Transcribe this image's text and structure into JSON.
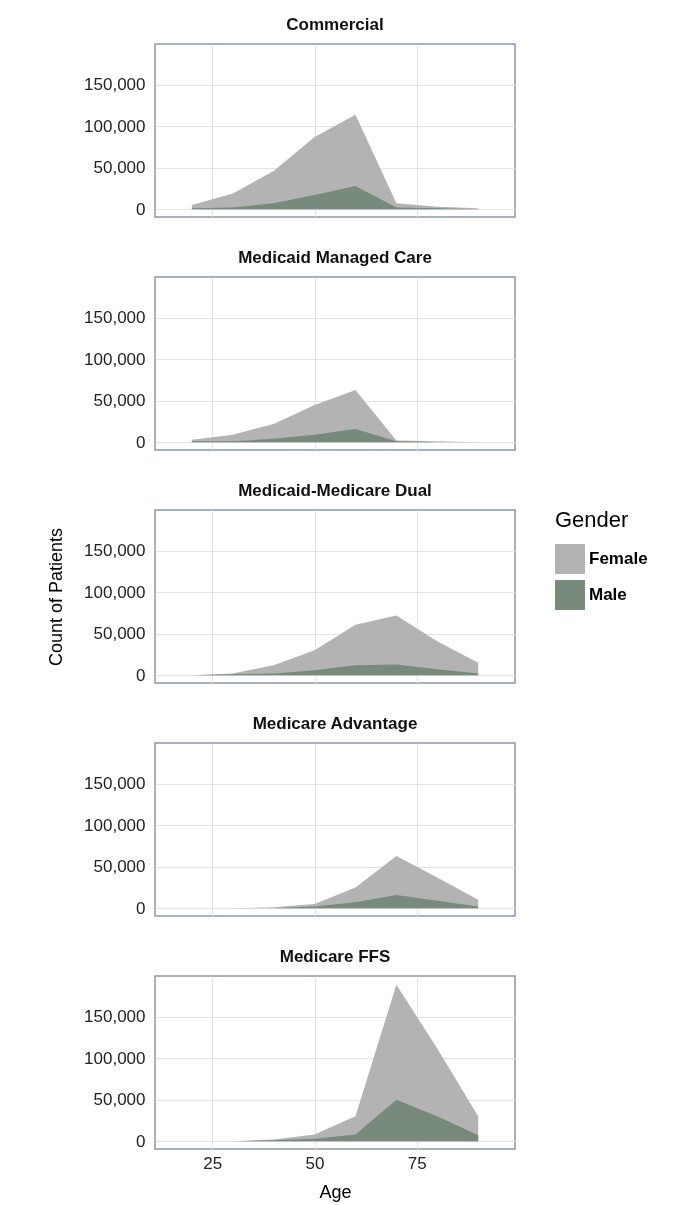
{
  "chart_data": [
    {
      "type": "area",
      "title": "Commercial",
      "x": [
        20,
        30,
        40,
        50,
        60,
        70,
        80,
        90
      ],
      "xlim": [
        11,
        99
      ],
      "xticks": [
        25,
        50,
        75
      ],
      "ylim": [
        -9500,
        199500
      ],
      "yticks": [
        {
          "value": 0,
          "label": "0"
        },
        {
          "value": 50000,
          "label": "50,000"
        },
        {
          "value": 100000,
          "label": "100,000"
        },
        {
          "value": 150000,
          "label": "150,000"
        }
      ],
      "grid": true,
      "tick_labels": "y",
      "series": [
        {
          "color": "#b3b3b3",
          "values": [
            5000,
            19000,
            46000,
            87000,
            114000,
            7000,
            3000,
            1000
          ]
        },
        {
          "color": "#778a7c",
          "values": [
            1000,
            2000,
            7000,
            17000,
            28000,
            2000,
            1000,
            0
          ]
        }
      ]
    },
    {
      "type": "area",
      "title": "Medicaid Managed Care",
      "x": [
        20,
        30,
        40,
        50,
        60,
        70,
        80,
        90
      ],
      "xlim": [
        11,
        99
      ],
      "xticks": [
        25,
        50,
        75
      ],
      "ylim": [
        -9500,
        199500
      ],
      "yticks": [
        {
          "value": 0,
          "label": "0"
        },
        {
          "value": 50000,
          "label": "50,000"
        },
        {
          "value": 100000,
          "label": "100,000"
        },
        {
          "value": 150000,
          "label": "150,000"
        }
      ],
      "grid": true,
      "tick_labels": "y",
      "series": [
        {
          "color": "#b3b3b3",
          "values": [
            3000,
            9000,
            22000,
            45000,
            63000,
            2000,
            1000,
            0
          ]
        },
        {
          "color": "#778a7c",
          "values": [
            1000,
            1000,
            4000,
            9000,
            16000,
            1000,
            0,
            0
          ]
        }
      ]
    },
    {
      "type": "area",
      "title": "Medicaid-Medicare Dual",
      "ylabel": "Count of Patients",
      "legend": "right",
      "legend_title": "Gender",
      "x": [
        20,
        30,
        40,
        50,
        60,
        70,
        80,
        90
      ],
      "xlim": [
        11,
        99
      ],
      "xticks": [
        25,
        50,
        75
      ],
      "ylim": [
        -9500,
        199500
      ],
      "yticks": [
        {
          "value": 0,
          "label": "0"
        },
        {
          "value": 50000,
          "label": "50,000"
        },
        {
          "value": 100000,
          "label": "100,000"
        },
        {
          "value": 150000,
          "label": "150,000"
        }
      ],
      "grid": true,
      "tick_labels": "y",
      "series": [
        {
          "name": "Female",
          "color": "#b3b3b3",
          "values": [
            0,
            2000,
            12000,
            30000,
            61000,
            72000,
            41000,
            15000
          ]
        },
        {
          "name": "Male",
          "color": "#778a7c",
          "values": [
            0,
            1000,
            2000,
            6000,
            12000,
            13000,
            7000,
            2000
          ]
        }
      ]
    },
    {
      "type": "area",
      "title": "Medicare Advantage",
      "x": [
        20,
        30,
        40,
        50,
        60,
        70,
        80,
        90
      ],
      "xlim": [
        11,
        99
      ],
      "xticks": [
        25,
        50,
        75
      ],
      "ylim": [
        -9500,
        199500
      ],
      "yticks": [
        {
          "value": 0,
          "label": "0"
        },
        {
          "value": 50000,
          "label": "50,000"
        },
        {
          "value": 100000,
          "label": "100,000"
        },
        {
          "value": 150000,
          "label": "150,000"
        }
      ],
      "grid": true,
      "tick_labels": "y",
      "series": [
        {
          "color": "#b3b3b3",
          "values": [
            0,
            0,
            1000,
            5000,
            25000,
            63000,
            37000,
            10000
          ]
        },
        {
          "color": "#778a7c",
          "values": [
            0,
            0,
            0,
            2000,
            7000,
            16000,
            9000,
            2000
          ]
        }
      ]
    },
    {
      "type": "area",
      "title": "Medicare FFS",
      "xlabel": "Age",
      "x": [
        20,
        30,
        40,
        50,
        60,
        70,
        80,
        90
      ],
      "xlim": [
        11,
        99
      ],
      "xticks": [
        25,
        50,
        75
      ],
      "ylim": [
        -9500,
        199500
      ],
      "yticks": [
        {
          "value": 0,
          "label": "0"
        },
        {
          "value": 50000,
          "label": "50,000"
        },
        {
          "value": 100000,
          "label": "100,000"
        },
        {
          "value": 150000,
          "label": "150,000"
        }
      ],
      "grid": true,
      "series": [
        {
          "color": "#b3b3b3",
          "values": [
            0,
            0,
            2000,
            8000,
            30000,
            189000,
            112000,
            30000
          ]
        },
        {
          "color": "#778a7c",
          "values": [
            0,
            0,
            1000,
            3000,
            8000,
            50000,
            30000,
            7000
          ]
        }
      ]
    }
  ]
}
